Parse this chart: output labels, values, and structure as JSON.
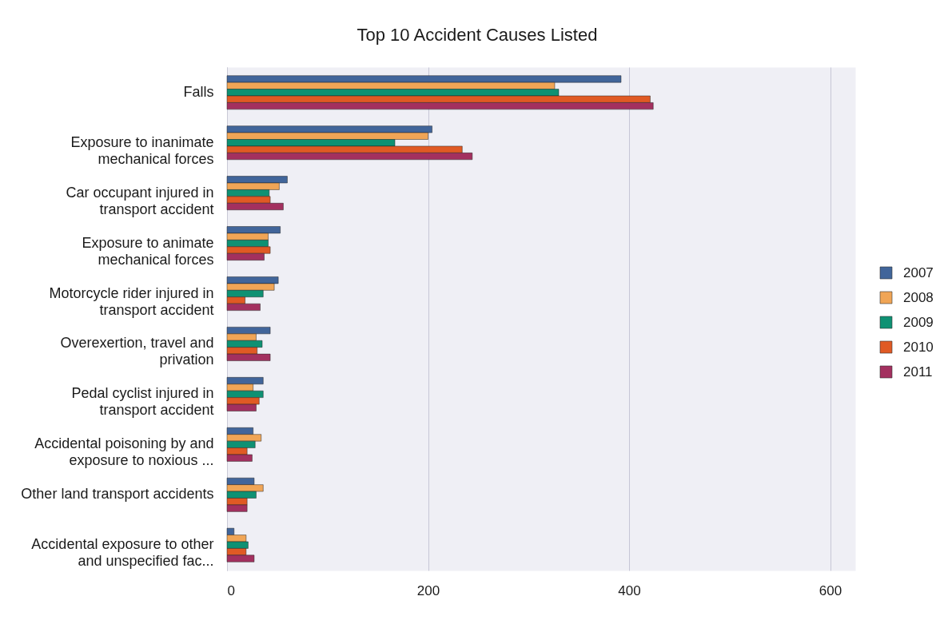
{
  "chart_data": {
    "type": "bar",
    "orientation": "horizontal",
    "title": "Top 10 Accident Causes Listed",
    "categories": [
      "Falls",
      "Exposure to inanimate mechanical forces",
      "Car occupant injured in transport accident",
      "Exposure to animate mechanical forces",
      "Motorcycle rider injured in transport accident",
      "Overexertion, travel and privation",
      "Pedal cyclist injured in transport accident",
      "Accidental poisoning by and exposure to noxious ...",
      "Other land transport accidents",
      "Accidental exposure to other and unspecified fac..."
    ],
    "series": [
      {
        "name": "2007",
        "color": "#41659a",
        "values": [
          392,
          204,
          60,
          53,
          51,
          43,
          36,
          26,
          27,
          7
        ]
      },
      {
        "name": "2008",
        "color": "#f0a556",
        "values": [
          326,
          200,
          52,
          41,
          47,
          29,
          26,
          34,
          36,
          19
        ]
      },
      {
        "name": "2009",
        "color": "#0f9173",
        "values": [
          330,
          167,
          42,
          41,
          36,
          35,
          36,
          28,
          29,
          21
        ]
      },
      {
        "name": "2010",
        "color": "#e05a24",
        "values": [
          421,
          234,
          43,
          43,
          18,
          30,
          32,
          20,
          20,
          19
        ]
      },
      {
        "name": "2011",
        "color": "#a3305f",
        "values": [
          424,
          244,
          56,
          37,
          33,
          43,
          29,
          25,
          20,
          27
        ]
      }
    ],
    "xlim": [
      0,
      625
    ],
    "xticks": [
      0,
      200,
      400,
      600
    ],
    "grid": "x",
    "legend": "right"
  }
}
